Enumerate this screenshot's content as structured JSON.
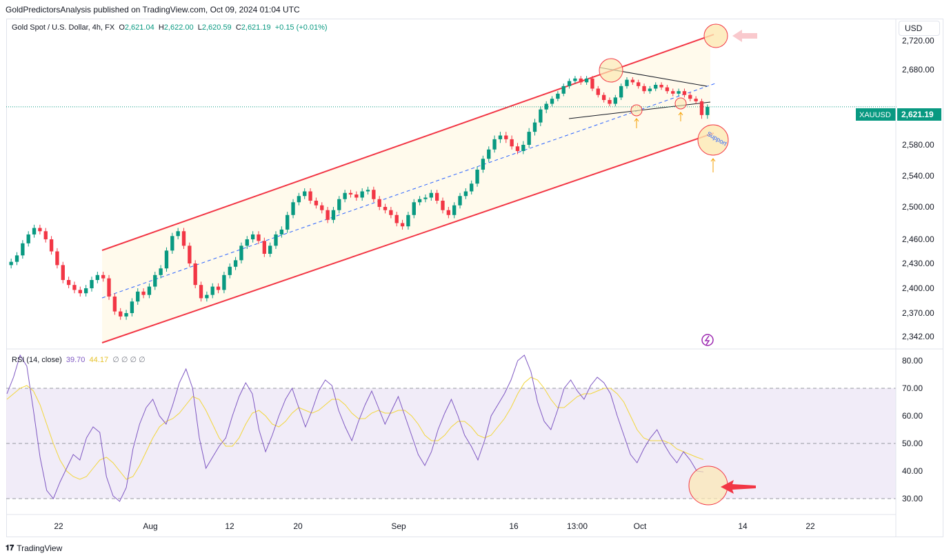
{
  "publisher_line": "GoldPredictorsAnalysis published on TradingView.com, Oct 09, 2024 01:04 UTC",
  "legend": {
    "symbol": "Gold Spot / U.S. Dollar, 4h, FX",
    "open_label": "O",
    "open": "2,621.04",
    "high_label": "H",
    "high": "2,622.00",
    "low_label": "L",
    "low": "2,620.59",
    "close_label": "C",
    "close": "2,621.19",
    "change": "+0.15 (+0.01%)"
  },
  "currency": "USD",
  "price_tag": {
    "symbol": "XAUUSD",
    "value": "2,621.19"
  },
  "rsi_legend": {
    "name": "RSI (14, close)",
    "rsi": "39.70",
    "ma": "44.17",
    "extra": "∅ ∅ ∅ ∅"
  },
  "annotation_support": "Support",
  "footer_brand": "TradingView",
  "colors": {
    "up": "#089981",
    "down": "#f23645",
    "channel": "#f23645",
    "rsi": "#7e57c2",
    "rsi_ma": "#f2d63a",
    "band": "#ede7f6",
    "highlight": "#fce8b2"
  },
  "chart_data": [
    {
      "type": "candlestick",
      "title": "Gold Spot / U.S. Dollar, 4h, FX",
      "y_ticks": [
        2342,
        2370,
        2400,
        2430,
        2460,
        2500,
        2540,
        2580,
        2620,
        2680,
        2720
      ],
      "y_tick_labels": [
        "2,342.00",
        "2,370.00",
        "2,400.00",
        "2,430.00",
        "2,460.00",
        "2,500.00",
        "2,540.00",
        "2,580.00",
        "2,620.00",
        "2,680.00",
        "2,720.00"
      ],
      "x_tick_labels": [
        "22",
        "Aug",
        "12",
        "20",
        "Sep",
        "16",
        "13:00",
        "Oct",
        "14",
        "22"
      ],
      "last_price": 2621.19,
      "closes": [
        2432,
        2440,
        2455,
        2466,
        2474,
        2470,
        2460,
        2445,
        2428,
        2410,
        2404,
        2398,
        2394,
        2400,
        2410,
        2416,
        2412,
        2390,
        2372,
        2366,
        2370,
        2384,
        2396,
        2392,
        2402,
        2416,
        2424,
        2446,
        2464,
        2470,
        2452,
        2430,
        2404,
        2388,
        2392,
        2402,
        2398,
        2416,
        2426,
        2434,
        2452,
        2460,
        2466,
        2458,
        2442,
        2452,
        2466,
        2472,
        2490,
        2506,
        2514,
        2520,
        2508,
        2502,
        2496,
        2484,
        2496,
        2510,
        2518,
        2516,
        2512,
        2520,
        2522,
        2510,
        2500,
        2496,
        2490,
        2480,
        2476,
        2490,
        2506,
        2510,
        2512,
        2518,
        2508,
        2496,
        2490,
        2502,
        2514,
        2520,
        2530,
        2548,
        2562,
        2574,
        2586,
        2590,
        2586,
        2578,
        2572,
        2580,
        2594,
        2604,
        2618,
        2626,
        2634,
        2642,
        2654,
        2662,
        2666,
        2660,
        2666,
        2650,
        2640,
        2632,
        2626,
        2636,
        2654,
        2664,
        2660,
        2654,
        2646,
        2650,
        2656,
        2652,
        2646,
        2642,
        2646,
        2640,
        2634,
        2630,
        2612,
        2621
      ]
    },
    {
      "type": "line",
      "title": "RSI (14, close)",
      "y_ticks": [
        30,
        40,
        50,
        60,
        70,
        80
      ],
      "y_tick_labels": [
        "30.00",
        "40.00",
        "50.00",
        "60.00",
        "70.00",
        "80.00"
      ],
      "overbought": 70,
      "middle": 50,
      "oversold": 30,
      "series": [
        {
          "name": "RSI",
          "values": [
            68,
            74,
            82,
            78,
            62,
            45,
            33,
            30,
            36,
            41,
            46,
            44,
            52,
            56,
            54,
            38,
            31,
            29,
            34,
            48,
            57,
            63,
            66,
            60,
            57,
            64,
            72,
            77,
            70,
            52,
            41,
            45,
            49,
            52,
            60,
            67,
            72,
            68,
            55,
            47,
            53,
            60,
            66,
            70,
            63,
            56,
            62,
            69,
            73,
            71,
            62,
            56,
            51,
            58,
            64,
            69,
            63,
            57,
            62,
            67,
            60,
            53,
            46,
            42,
            47,
            55,
            61,
            66,
            60,
            53,
            49,
            44,
            51,
            60,
            64,
            68,
            73,
            80,
            82,
            76,
            65,
            58,
            55,
            62,
            70,
            73,
            69,
            66,
            71,
            74,
            72,
            68,
            60,
            53,
            46,
            43,
            48,
            52,
            55,
            50,
            46,
            43,
            47,
            44,
            40,
            39.7
          ]
        },
        {
          "name": "MA",
          "values": [
            66,
            68,
            70,
            71,
            69,
            64,
            57,
            50,
            44,
            40,
            38,
            37,
            38,
            41,
            44,
            45,
            43,
            40,
            37,
            38,
            42,
            47,
            52,
            56,
            58,
            59,
            61,
            64,
            67,
            66,
            62,
            57,
            52,
            49,
            49,
            52,
            57,
            61,
            62,
            60,
            57,
            56,
            58,
            61,
            63,
            62,
            61,
            62,
            64,
            66,
            66,
            64,
            61,
            59,
            59,
            61,
            62,
            61,
            61,
            62,
            62,
            60,
            57,
            53,
            51,
            51,
            53,
            56,
            58,
            58,
            56,
            53,
            52,
            53,
            56,
            59,
            63,
            68,
            72,
            74,
            73,
            70,
            66,
            63,
            63,
            65,
            67,
            68,
            68,
            69,
            70,
            70,
            68,
            65,
            60,
            55,
            52,
            51,
            51,
            51,
            50,
            48,
            47,
            46,
            45,
            44.17
          ]
        }
      ]
    }
  ]
}
